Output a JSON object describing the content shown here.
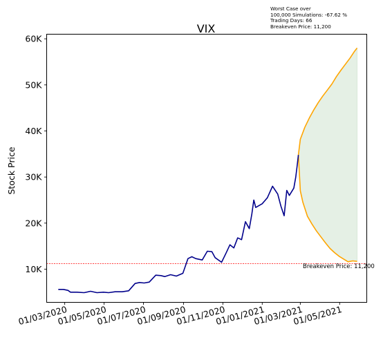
{
  "chart_data": {
    "type": "line",
    "title": "VIX",
    "xlabel": "",
    "ylabel": "Stock Price",
    "x_ticks": [
      "01/03/2020",
      "01/05/2020",
      "01/07/2020",
      "01/09/2020",
      "01/11/2020",
      "01/01/2021",
      "01/03/2021",
      "01/05/2021"
    ],
    "y_ticks": [
      "10K",
      "20K",
      "30K",
      "40K",
      "50K",
      "60K"
    ],
    "y_tick_values": [
      10000,
      20000,
      30000,
      40000,
      50000,
      60000
    ],
    "ylim": [
      2800,
      61000
    ],
    "xlim": [
      "2020-02-02",
      "2021-06-12"
    ],
    "grid": false,
    "colors": {
      "history": "#00008b",
      "projection": "#ffa500",
      "band": "#e5f0e5",
      "breakeven": "#ff0000"
    },
    "annotation_lines": [
      "Worst Case over",
      "100,000 Simulations: -67.62 %",
      "Trading Days: 66",
      "Breakeven Price: 11,200"
    ],
    "breakeven": {
      "value": 11200,
      "label": "Breakeven Price: 11,200"
    },
    "history": {
      "dates": [
        "2020-02-20",
        "2020-02-28",
        "2020-03-06",
        "2020-03-10",
        "2020-03-15",
        "2020-03-20",
        "2020-03-31",
        "2020-04-10",
        "2020-04-20",
        "2020-04-30",
        "2020-05-08",
        "2020-05-18",
        "2020-05-29",
        "2020-06-08",
        "2020-06-18",
        "2020-06-25",
        "2020-07-02",
        "2020-07-10",
        "2020-07-20",
        "2020-07-28",
        "2020-08-03",
        "2020-08-12",
        "2020-08-21",
        "2020-08-31",
        "2020-09-08",
        "2020-09-14",
        "2020-09-20",
        "2020-09-30",
        "2020-10-08",
        "2020-10-15",
        "2020-10-20",
        "2020-10-30",
        "2020-11-06",
        "2020-11-12",
        "2020-11-18",
        "2020-11-24",
        "2020-11-30",
        "2020-12-06",
        "2020-12-12",
        "2020-12-16",
        "2020-12-19",
        "2020-12-22",
        "2021-01-01",
        "2021-01-09",
        "2021-01-17",
        "2021-01-25",
        "2021-01-30",
        "2021-02-04",
        "2021-02-08",
        "2021-02-12",
        "2021-02-19",
        "2021-02-22",
        "2021-02-24",
        "2021-02-26"
      ],
      "values": [
        5600,
        5600,
        5400,
        5000,
        5000,
        5000,
        4900,
        5200,
        4900,
        5000,
        4900,
        5100,
        5100,
        5300,
        6900,
        7100,
        7000,
        7200,
        8700,
        8600,
        8400,
        8800,
        8500,
        9100,
        12300,
        12700,
        12300,
        12000,
        13900,
        13800,
        12500,
        11500,
        13500,
        15300,
        14600,
        16800,
        16400,
        20300,
        18800,
        22000,
        25000,
        23400,
        24200,
        25500,
        28000,
        26300,
        23700,
        21600,
        27100,
        26000,
        27600,
        30000,
        32300,
        34800
      ]
    },
    "projection_upper": {
      "dates": [
        "2021-02-26",
        "2021-03-01",
        "2021-03-08",
        "2021-03-15",
        "2021-03-22",
        "2021-03-29",
        "2021-04-05",
        "2021-04-12",
        "2021-04-19",
        "2021-04-26",
        "2021-05-03",
        "2021-05-10",
        "2021-05-17",
        "2021-05-24",
        "2021-05-28"
      ],
      "values": [
        34800,
        38200,
        40800,
        42800,
        44600,
        46200,
        47600,
        48900,
        50200,
        51800,
        53200,
        54500,
        55800,
        57300,
        58000
      ]
    },
    "projection_lower": {
      "dates": [
        "2021-02-26",
        "2021-03-01",
        "2021-03-05",
        "2021-03-12",
        "2021-03-19",
        "2021-03-26",
        "2021-04-02",
        "2021-04-09",
        "2021-04-16",
        "2021-04-23",
        "2021-04-30",
        "2021-05-07",
        "2021-05-14",
        "2021-05-21",
        "2021-05-28"
      ],
      "values": [
        34800,
        27000,
        24500,
        21500,
        19800,
        18300,
        17000,
        15700,
        14500,
        13600,
        12800,
        12200,
        11600,
        11800,
        11700
      ]
    }
  }
}
